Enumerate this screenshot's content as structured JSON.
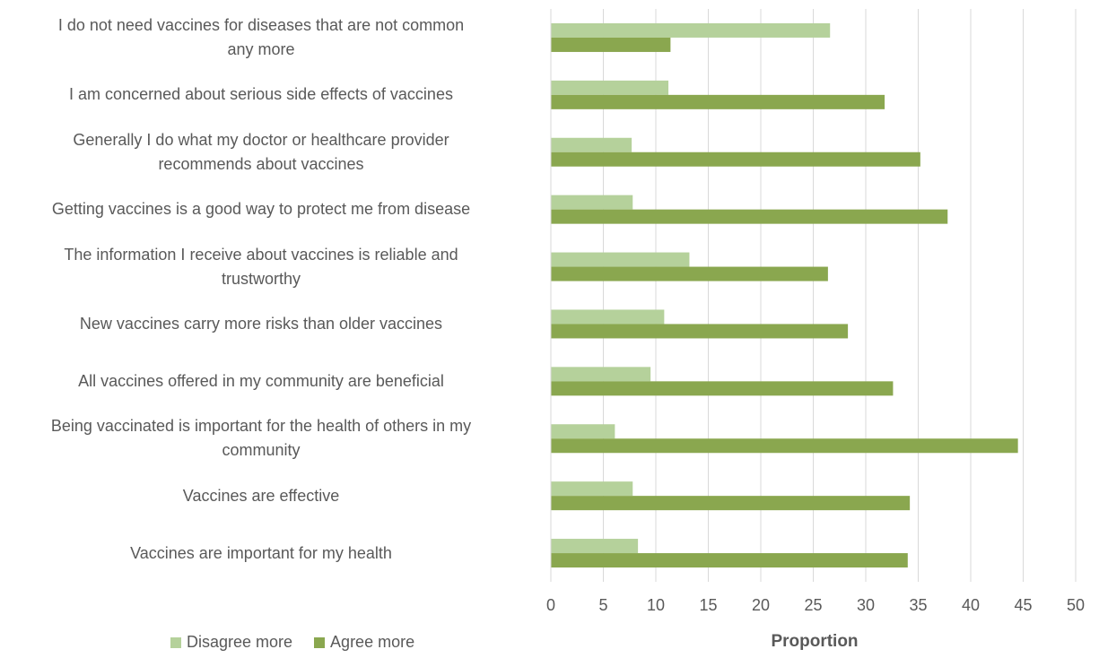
{
  "chart_data": {
    "type": "bar",
    "orientation": "horizontal",
    "categories": [
      "I do not need vaccines for diseases that are not common any more",
      "I am concerned about serious side effects of vaccines",
      "Generally I do what my doctor or healthcare provider recommends about vaccines",
      "Getting vaccines is a good way to protect me from disease",
      "The information I receive about vaccines is reliable and trustworthy",
      "New vaccines carry more risks than older vaccines",
      "All vaccines offered in my community are beneficial",
      "Being vaccinated is important for the health of others in my community",
      "Vaccines are effective",
      "Vaccines are important for my health"
    ],
    "category_lines": [
      [
        "I do not need vaccines for diseases that are not common",
        "any more"
      ],
      [
        "I am concerned about serious side effects of vaccines"
      ],
      [
        "Generally I do what my doctor or healthcare provider",
        "recommends about vaccines"
      ],
      [
        "Getting vaccines is a good way to protect me from disease"
      ],
      [
        "The information I receive about vaccines is reliable and",
        "trustworthy"
      ],
      [
        "New vaccines carry more risks than older vaccines"
      ],
      [
        "All vaccines offered in my community are beneficial"
      ],
      [
        "Being vaccinated is important for the health of others in my",
        "community"
      ],
      [
        "Vaccines are effective"
      ],
      [
        "Vaccines are important for my health"
      ]
    ],
    "series": [
      {
        "name": "Disagree more",
        "color": "#b5d19b",
        "values": [
          26.6,
          11.2,
          7.7,
          7.8,
          13.2,
          10.8,
          9.5,
          6.1,
          7.8,
          8.3
        ]
      },
      {
        "name": "Agree more",
        "color": "#8aa74f",
        "values": [
          11.4,
          31.8,
          35.2,
          37.8,
          26.4,
          28.3,
          32.6,
          44.5,
          34.2,
          34.0
        ]
      }
    ],
    "x_ticks": [
      "0",
      "5",
      "10",
      "15",
      "20",
      "25",
      "30",
      "35",
      "40",
      "45",
      "50"
    ],
    "xlim": [
      0,
      50
    ],
    "xlabel": "Proportion",
    "ylabel": "",
    "title": "",
    "grid": "vertical",
    "legend": "bottom-left"
  },
  "legend_items": [
    {
      "label": "Disagree more",
      "color": "#b5d19b"
    },
    {
      "label": "Agree more",
      "color": "#8aa74f"
    }
  ]
}
